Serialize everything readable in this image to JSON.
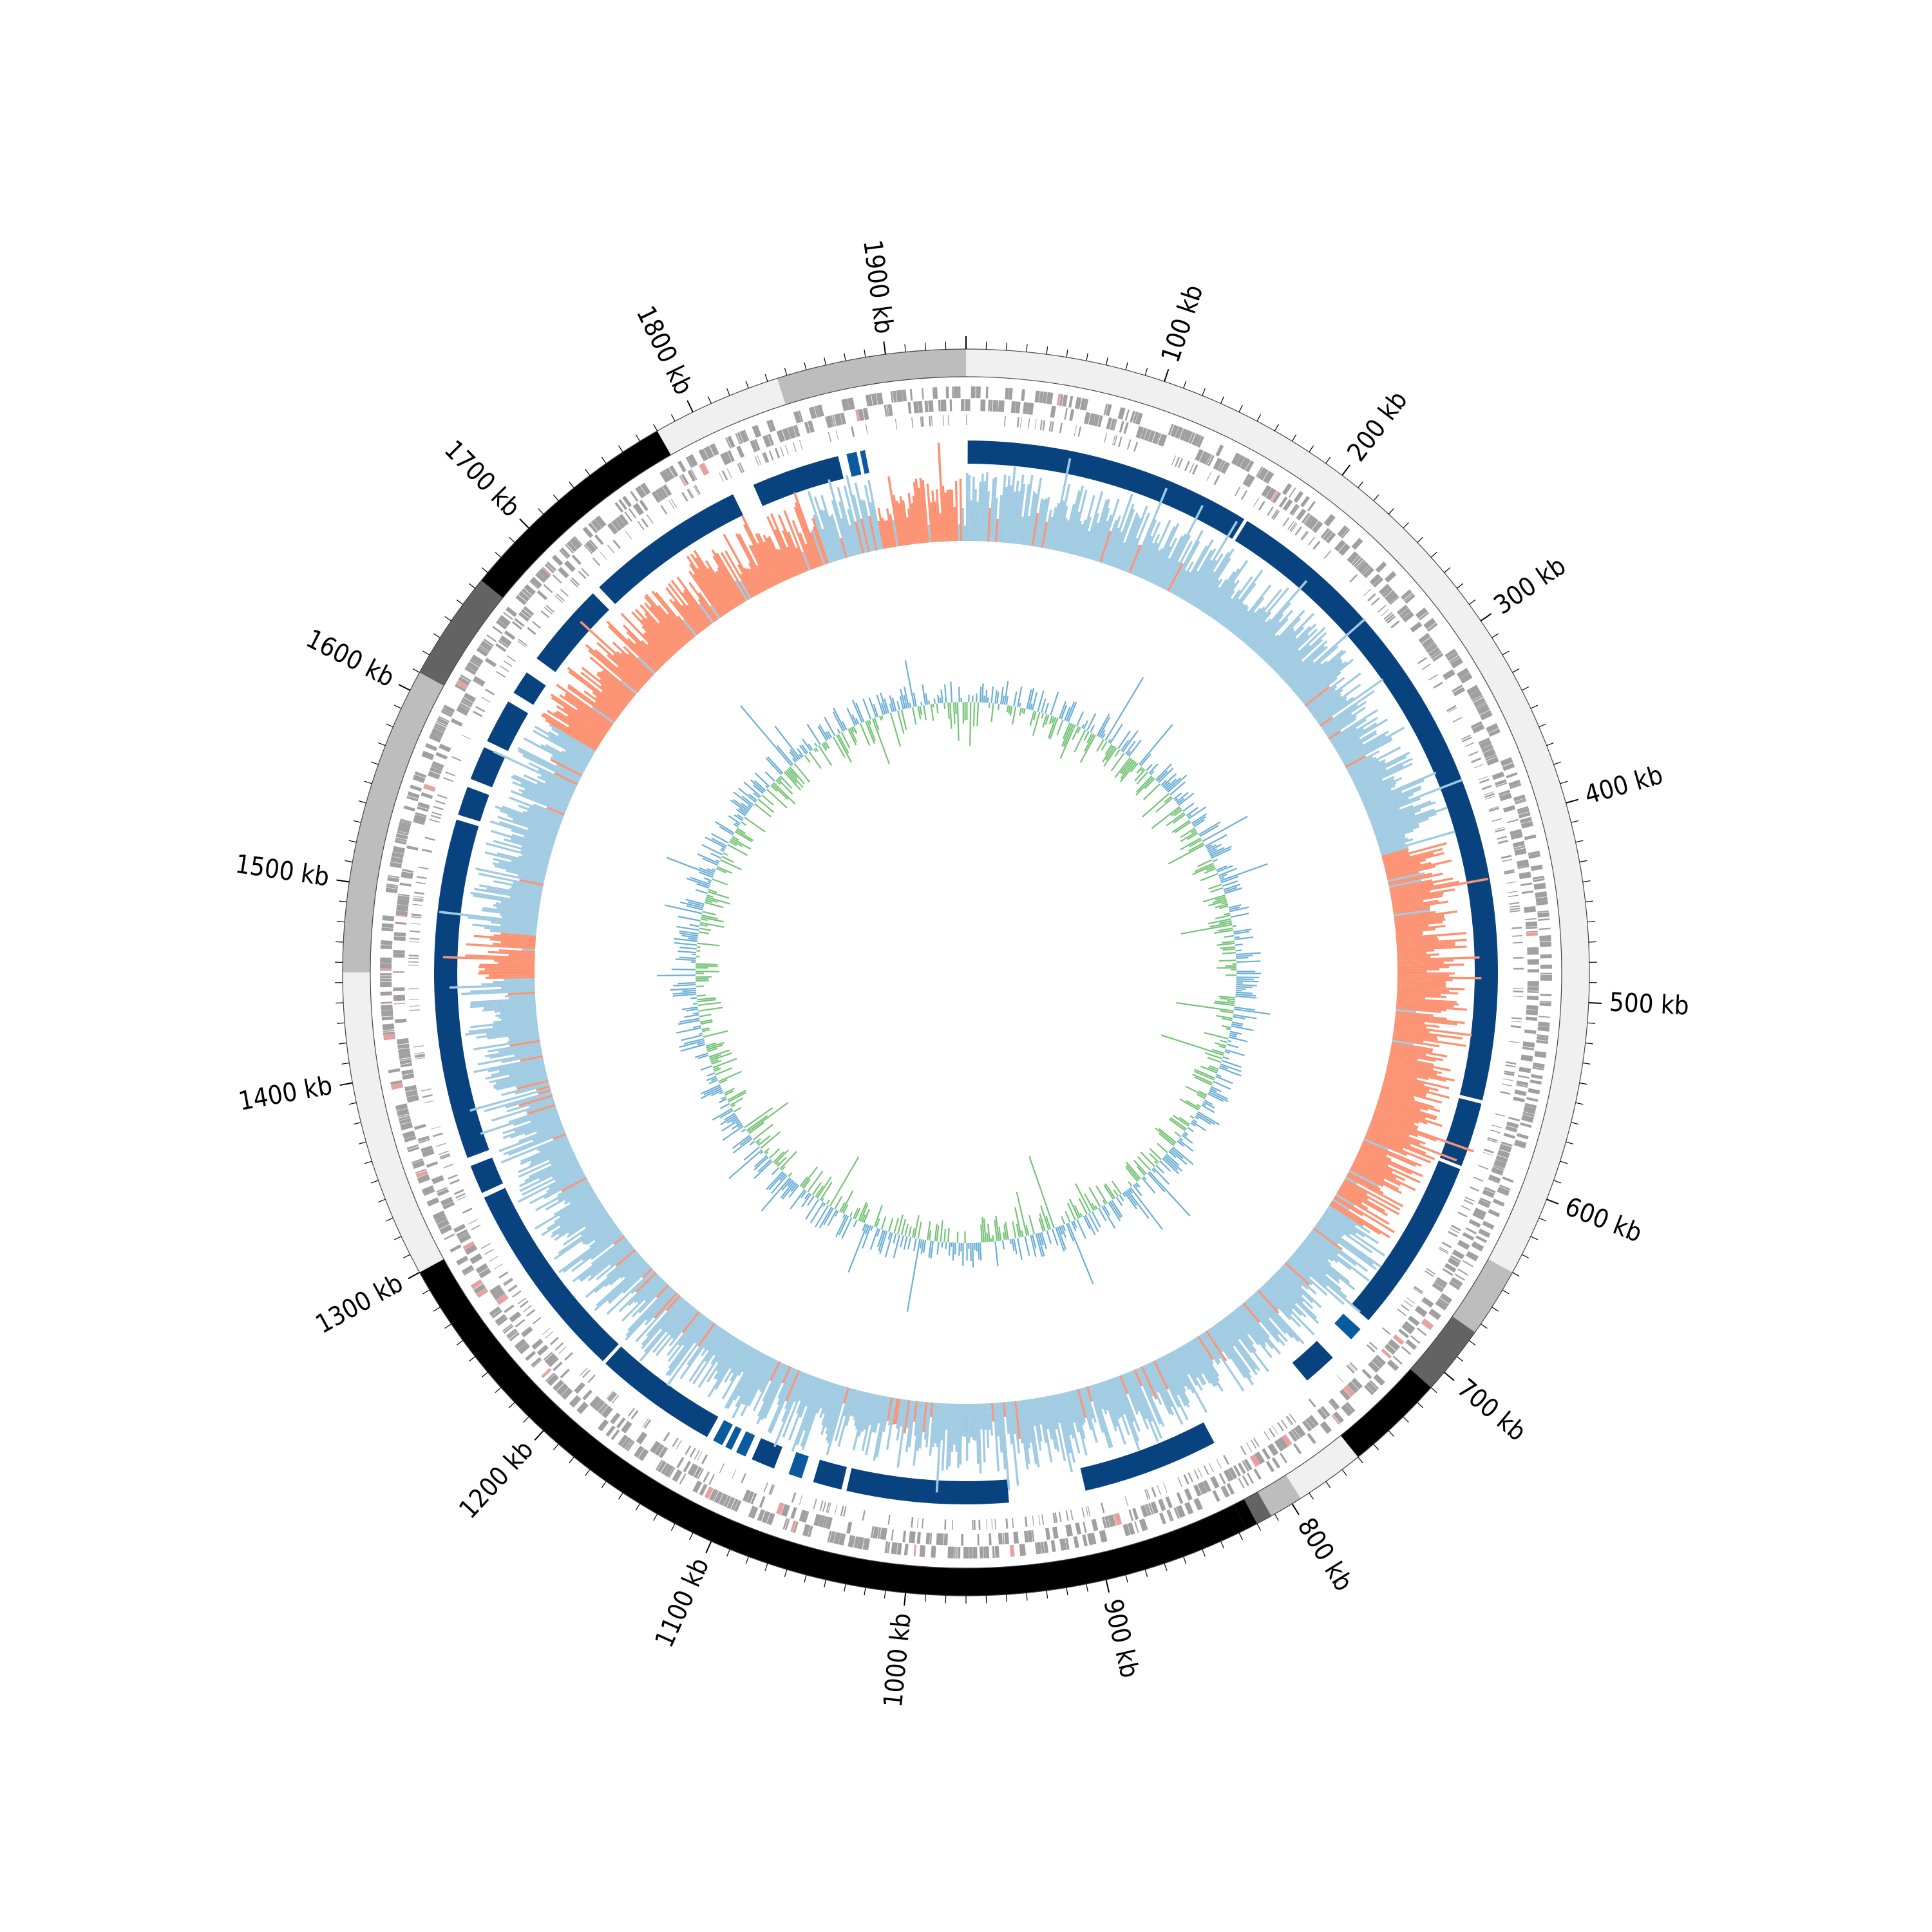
{
  "genome": {
    "length_kb": 1940,
    "tick_labels": [
      "100 kb",
      "200 kb",
      "300 kb",
      "400 kb",
      "500 kb",
      "600 kb",
      "700 kb",
      "800 kb",
      "900 kb",
      "1000 kb",
      "1100 kb",
      "1200 kb",
      "1300 kb",
      "1400 kb",
      "1500 kb",
      "1600 kb",
      "1700 kb",
      "1800 kb",
      "1900 kb"
    ],
    "tick_values_kb": [
      100,
      200,
      300,
      400,
      500,
      600,
      700,
      800,
      900,
      1000,
      1100,
      1200,
      1300,
      1400,
      1500,
      1600,
      1700,
      1800,
      1900
    ]
  },
  "tracks": {
    "contigs": [
      {
        "start": 0,
        "end": 640,
        "color": "#f0f0f0"
      },
      {
        "start": 640,
        "end": 675,
        "color": "#bdbdbd"
      },
      {
        "start": 675,
        "end": 710,
        "color": "#636363"
      },
      {
        "start": 710,
        "end": 760,
        "color": "#000000"
      },
      {
        "start": 760,
        "end": 795,
        "color": "#f0f0f0"
      },
      {
        "start": 795,
        "end": 812,
        "color": "#bdbdbd"
      },
      {
        "start": 812,
        "end": 820,
        "color": "#636363"
      },
      {
        "start": 820,
        "end": 826,
        "color": "#000000"
      },
      {
        "start": 826,
        "end": 1300,
        "color": "#000000"
      },
      {
        "start": 1300,
        "end": 1455,
        "color": "#f0f0f0"
      },
      {
        "start": 1455,
        "end": 1610,
        "color": "#bdbdbd"
      },
      {
        "start": 1610,
        "end": 1665,
        "color": "#636363"
      },
      {
        "start": 1665,
        "end": 1780,
        "color": "#000000"
      },
      {
        "start": 1780,
        "end": 1845,
        "color": "#f0f0f0"
      },
      {
        "start": 1845,
        "end": 1940,
        "color": "#bdbdbd"
      }
    ],
    "features": {
      "color": "#a0a0a0",
      "accent_color": "#e8a0a0"
    },
    "blocks": {
      "color": "#08427f",
      "accent_color": "#0a5aa0",
      "segments": [
        [
          1,
          170
        ],
        [
          172,
          560
        ],
        [
          562,
          600
        ],
        [
          602,
          705
        ],
        [
          712,
          720
        ],
        [
          735,
          755
        ],
        [
          820,
          900
        ],
        [
          945,
          1040
        ],
        [
          1043,
          1060
        ],
        [
          1067,
          1075
        ],
        [
          1084,
          1098
        ],
        [
          1102,
          1108
        ],
        [
          1111,
          1115
        ],
        [
          1117,
          1123
        ],
        [
          1127,
          1200
        ],
        [
          1202,
          1320
        ],
        [
          1323,
          1340
        ],
        [
          1345,
          1545
        ],
        [
          1548,
          1565
        ],
        [
          1570,
          1590
        ],
        [
          1594,
          1620
        ],
        [
          1626,
          1640
        ],
        [
          1650,
          1700
        ],
        [
          1705,
          1800
        ],
        [
          1813,
          1865
        ],
        [
          1870,
          1876
        ],
        [
          1878,
          1881
        ]
      ]
    },
    "gc_skew": {
      "positive_color": "#a0cbe2",
      "negative_color": "#fc9272",
      "line_positive": "#6baed6",
      "line_negative": "#ef3b2c"
    },
    "gc_content": {
      "above_color": "#6baed6",
      "below_color": "#74c476"
    }
  }
}
